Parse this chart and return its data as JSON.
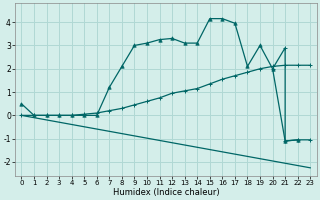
{
  "xlabel": "Humidex (Indice chaleur)",
  "bg_color": "#d4eeea",
  "grid_color": "#b0d8d4",
  "line_color": "#006666",
  "xlim": [
    -0.5,
    23.5
  ],
  "ylim": [
    -2.6,
    4.8
  ],
  "yticks": [
    -2,
    -1,
    0,
    1,
    2,
    3,
    4
  ],
  "xticks": [
    0,
    1,
    2,
    3,
    4,
    5,
    6,
    7,
    8,
    9,
    10,
    11,
    12,
    13,
    14,
    15,
    16,
    17,
    18,
    19,
    20,
    21,
    22,
    23
  ],
  "line1_x": [
    0,
    1,
    2,
    3,
    4,
    5,
    6,
    7,
    8,
    9,
    10,
    11,
    12,
    13,
    14,
    15,
    16,
    17,
    18,
    19,
    20,
    21,
    22,
    23
  ],
  "line1_y": [
    0.5,
    0.0,
    0.0,
    0.0,
    0.0,
    0.0,
    0.0,
    1.2,
    2.1,
    3.0,
    3.1,
    3.25,
    3.3,
    3.1,
    3.1,
    4.15,
    4.15,
    3.95,
    2.1,
    3.0,
    2.0,
    -1.1,
    -1.05,
    null
  ],
  "line1_markers": [
    "^",
    "^",
    "^",
    "^",
    "^",
    "^",
    "^",
    "^",
    "^",
    "^",
    "^",
    "^",
    "^",
    "^",
    "^",
    "^",
    "^",
    "^",
    "^",
    "^",
    "^",
    "^",
    "^",
    "none"
  ],
  "line2_x": [
    0,
    1,
    2,
    3,
    4,
    5,
    6,
    7,
    8,
    9,
    10,
    11,
    12,
    13,
    14,
    15,
    16,
    17,
    18,
    19,
    20,
    21,
    22,
    23
  ],
  "line2_y": [
    0.0,
    0.0,
    0.0,
    0.0,
    0.0,
    0.05,
    0.1,
    0.2,
    0.3,
    0.45,
    0.6,
    0.75,
    0.95,
    1.05,
    1.15,
    1.35,
    1.55,
    1.7,
    1.85,
    2.0,
    2.1,
    2.15,
    2.15,
    2.15
  ],
  "line3_x": [
    0,
    23
  ],
  "line3_y": [
    0.0,
    -2.25
  ],
  "line4_x": [
    20,
    21,
    21,
    22,
    23
  ],
  "line4_y": [
    2.0,
    2.9,
    -1.1,
    -1.05,
    -1.05
  ]
}
